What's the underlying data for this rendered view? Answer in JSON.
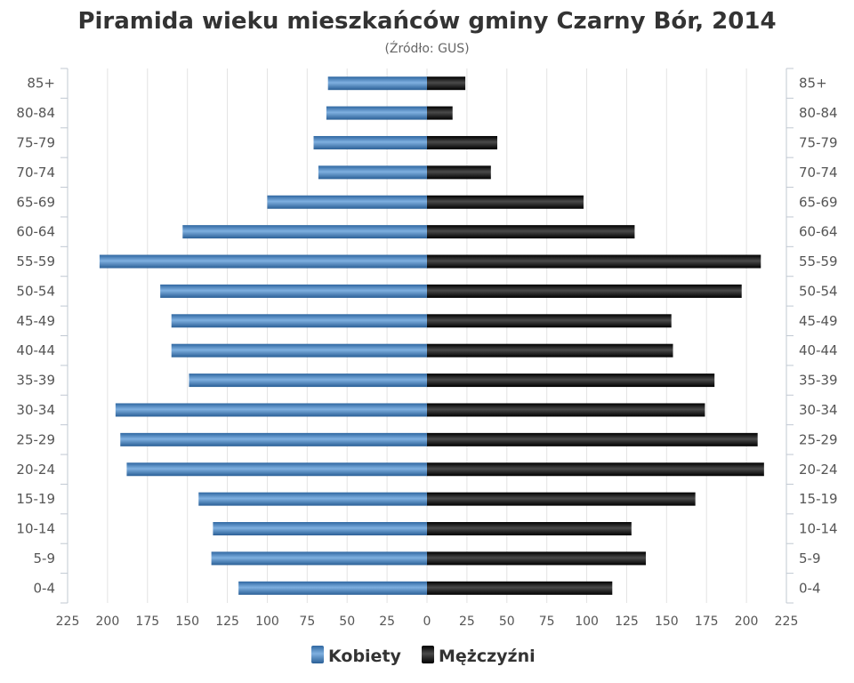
{
  "chart_data": {
    "type": "bar",
    "orientation": "horizontal-diverging",
    "title": "Piramida wieku mieszkańców gminy Czarny Bór, 2014",
    "subtitle": "(Źródło: GUS)",
    "categories": [
      "0-4",
      "5-9",
      "10-14",
      "15-19",
      "20-24",
      "25-29",
      "30-34",
      "35-39",
      "40-44",
      "45-49",
      "50-54",
      "55-59",
      "60-64",
      "65-69",
      "70-74",
      "75-79",
      "80-84",
      "85+"
    ],
    "series": [
      {
        "name": "Kobiety",
        "color": "#4a86c2",
        "side": "left",
        "values": [
          118,
          135,
          134,
          143,
          188,
          192,
          195,
          149,
          160,
          160,
          167,
          205,
          153,
          100,
          68,
          71,
          63,
          62
        ]
      },
      {
        "name": "Mężczyźni",
        "color": "#1a1a1a",
        "side": "right",
        "values": [
          116,
          137,
          128,
          168,
          211,
          207,
          174,
          180,
          154,
          153,
          197,
          209,
          130,
          98,
          40,
          44,
          16,
          24
        ]
      }
    ],
    "xlim": [
      -225,
      225
    ],
    "x_ticks": [
      225,
      200,
      175,
      150,
      125,
      100,
      75,
      50,
      25,
      0,
      25,
      50,
      75,
      100,
      125,
      150,
      175,
      200,
      225
    ],
    "x_tick_step": 25,
    "grid": true,
    "legend_position": "bottom-center"
  }
}
